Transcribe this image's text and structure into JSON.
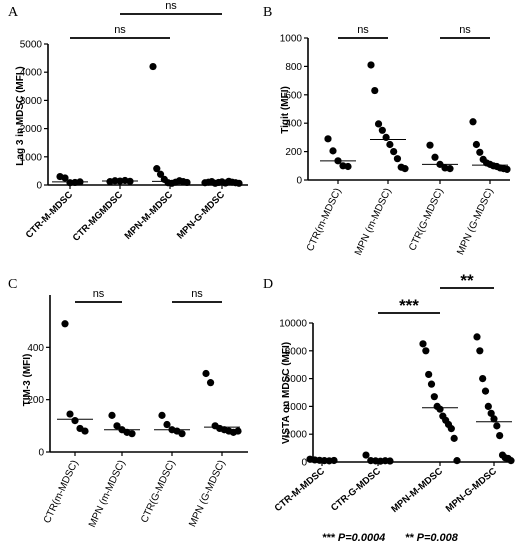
{
  "chart_data": [
    {
      "type": "scatter",
      "panel_label": "A",
      "ylabel": "Lag 3 in MDSC (MFI )",
      "ylim": [
        0,
        5000
      ],
      "yticks": [
        0,
        1000,
        2000,
        3000,
        4000,
        5000
      ],
      "categories": [
        "CTR-M-MDSC",
        "CTR-MGMDSC",
        "MPN-M-MDSC",
        "MPN-G-MDSC"
      ],
      "values": [
        [
          300,
          250,
          80,
          90,
          110
        ],
        [
          120,
          150,
          140,
          160,
          130
        ],
        [
          4200,
          580,
          380,
          200,
          80,
          60,
          100,
          150,
          120,
          90
        ],
        [
          80,
          100,
          120,
          60,
          90,
          110,
          70,
          130,
          100,
          80,
          60
        ]
      ],
      "medians": [
        110,
        140,
        130,
        90
      ],
      "annotations": [
        {
          "text": "ns",
          "from": 0,
          "to": 2
        },
        {
          "text": "ns",
          "from": 1,
          "to": 3
        }
      ]
    },
    {
      "type": "scatter",
      "panel_label": "B",
      "ylabel": "Tigit (MFI)",
      "ylim": [
        0,
        1000
      ],
      "yticks": [
        0,
        200,
        400,
        600,
        800,
        1000
      ],
      "categories": [
        "CTR(m-MDSC)",
        "MPN (m-MDSC)",
        "CTR(G-MDSC)",
        "MPN (G-MDSC)"
      ],
      "values": [
        [
          290,
          205,
          135,
          100,
          95
        ],
        [
          810,
          630,
          395,
          350,
          300,
          250,
          200,
          150,
          90,
          80
        ],
        [
          245,
          160,
          110,
          85,
          80
        ],
        [
          410,
          250,
          195,
          145,
          120,
          110,
          100,
          95,
          85,
          80,
          75
        ]
      ],
      "medians": [
        135,
        285,
        110,
        105
      ],
      "annotations": [
        {
          "text": "ns",
          "from": 0,
          "to": 1
        },
        {
          "text": "ns",
          "from": 2,
          "to": 3
        }
      ]
    },
    {
      "type": "scatter",
      "panel_label": "C",
      "ylabel": "TIM-3 (MFI)",
      "ylim": [
        0,
        600
      ],
      "yticks": [
        0,
        200,
        400
      ],
      "categories": [
        "CTR(m-MDSC)",
        "MPN (m-MDSC)",
        "CTR(G-MDSC)",
        "MPN (G-MDSC)"
      ],
      "values": [
        [
          490,
          145,
          120,
          90,
          80
        ],
        [
          140,
          100,
          85,
          75,
          70
        ],
        [
          140,
          105,
          85,
          80,
          70
        ],
        [
          300,
          265,
          100,
          90,
          85,
          80,
          75,
          80
        ]
      ],
      "medians": [
        125,
        85,
        85,
        95
      ],
      "annotations": [
        {
          "text": "ns",
          "from": 0,
          "to": 1
        },
        {
          "text": "ns",
          "from": 2,
          "to": 3
        }
      ]
    },
    {
      "type": "scatter",
      "panel_label": "D",
      "ylabel": "VISTA on MDSC (MFI)",
      "ylim": [
        0,
        10000
      ],
      "yticks": [
        0,
        2000,
        4000,
        6000,
        8000,
        10000
      ],
      "categories": [
        "CTR-M-MDSC",
        "CTR-G-MDSC",
        "MPN-M-MDSC",
        "MPN-G-MDSC"
      ],
      "values": [
        [
          200,
          150,
          120,
          100,
          80,
          110
        ],
        [
          500,
          100,
          80,
          60,
          90,
          70
        ],
        [
          8500,
          8000,
          6300,
          5600,
          4700,
          4000,
          3800,
          3300,
          3000,
          2700,
          2400,
          1700,
          100
        ],
        [
          9000,
          8000,
          6000,
          5100,
          4000,
          3500,
          3100,
          2600,
          1900,
          500,
          300,
          250,
          100
        ]
      ],
      "medians": [
        null,
        null,
        3900,
        2900
      ],
      "annotations": [
        {
          "text": "***",
          "from": 1,
          "to": 2
        },
        {
          "text": "**",
          "from": 2,
          "to": 3
        }
      ],
      "footnote": [
        "*** P=0.0004",
        "** P=0.008"
      ]
    }
  ]
}
